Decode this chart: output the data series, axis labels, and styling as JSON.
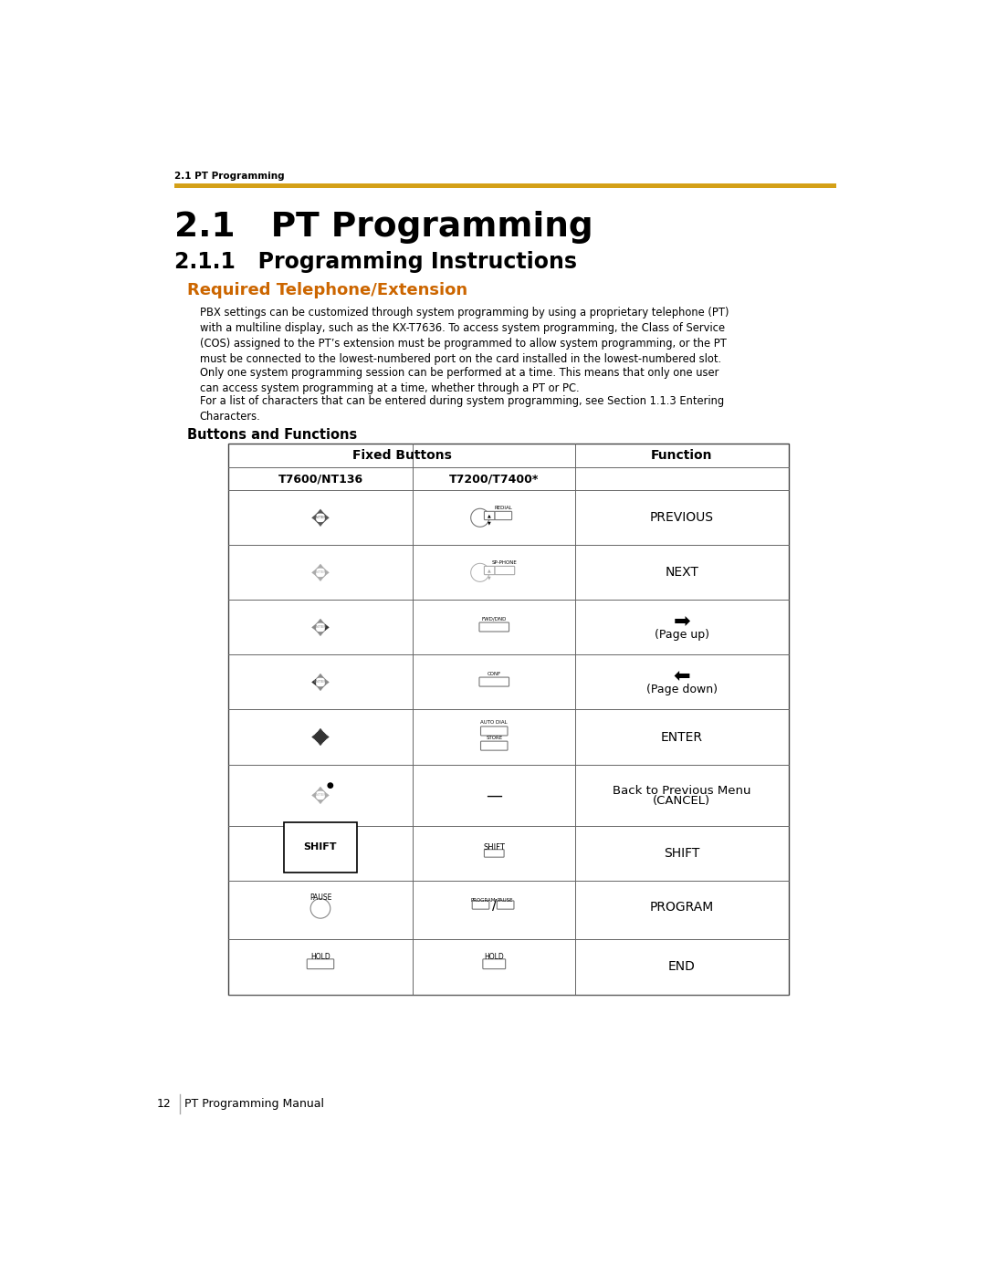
{
  "bg_color": "#ffffff",
  "header_small": "2.1 PT Programming",
  "gold_line_color": "#D4A017",
  "title_main": "2.1   PT Programming",
  "title_sub": "2.1.1   Programming Instructions",
  "section_heading": "Required Telephone/Extension",
  "section_heading_color": "#CC6600",
  "body_text_1": "PBX settings can be customized through system programming by using a proprietary telephone (PT)\nwith a multiline display, such as the KX-T7636. To access system programming, the Class of Service\n(COS) assigned to the PT’s extension must be programmed to allow system programming, or the PT\nmust be connected to the lowest-numbered port on the card installed in the lowest-numbered slot.",
  "body_text_2": "Only one system programming session can be performed at a time. This means that only one user\ncan access system programming at a time, whether through a PT or PC.",
  "body_text_3": "For a list of characters that can be entered during system programming, see Section 1.1.3 Entering\nCharacters.",
  "buttons_heading": "Buttons and Functions",
  "table_header_1": "Fixed Buttons",
  "table_col1": "T7600/NT136",
  "table_col2": "T7200/T7400*",
  "table_col3": "Function",
  "footer_page": "12",
  "footer_text": "PT Programming Manual"
}
